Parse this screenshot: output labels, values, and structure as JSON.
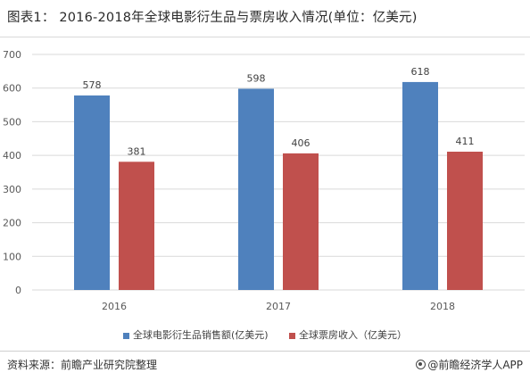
{
  "title": "图表1：  2016-2018年全球电影衍生品与票房收入情况(单位：亿美元)",
  "source": "资料来源：前瞻产业研究院整理",
  "brand": "@前瞻经济学人APP",
  "colors": {
    "series1": "#4f81bd",
    "series2": "#c0504d",
    "grid": "#d9d9d9"
  },
  "chart_data": {
    "type": "bar",
    "title": "图表1：  2016-2018年全球电影衍生品与票房收入情况(单位：亿美元)",
    "categories": [
      "2016",
      "2017",
      "2018"
    ],
    "series": [
      {
        "name": "全球电影衍生品销售额(亿美元)",
        "values": [
          578,
          598,
          618
        ]
      },
      {
        "name": "全球票房收入（亿美元）",
        "values": [
          381,
          406,
          411
        ]
      }
    ],
    "ylim": [
      0,
      700
    ],
    "yticks": [
      0,
      100,
      200,
      300,
      400,
      500,
      600,
      700
    ],
    "xlabel": "",
    "ylabel": "",
    "grid": true,
    "legend_position": "bottom",
    "data_labels": true
  }
}
